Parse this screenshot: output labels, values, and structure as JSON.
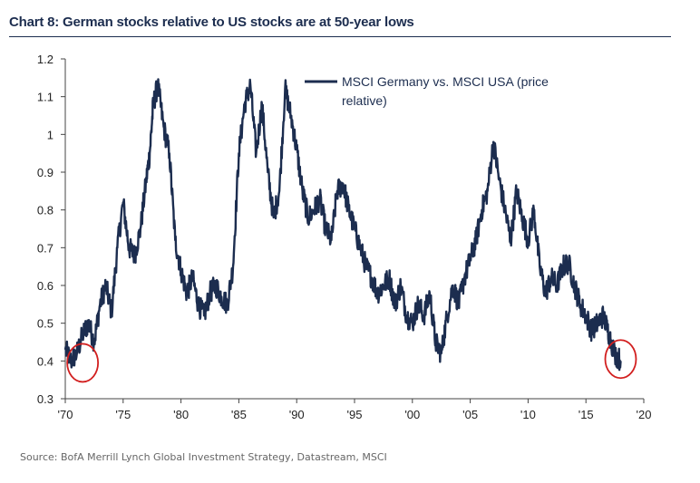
{
  "chart_data": {
    "type": "line",
    "title": "Chart 8: German stocks relative to US stocks are at 50-year lows",
    "xlabel": "",
    "ylabel": "",
    "xlim": [
      1970,
      2020
    ],
    "ylim": [
      0.3,
      1.2
    ],
    "x_ticks": [
      1970,
      1975,
      1980,
      1985,
      1990,
      1995,
      2000,
      2005,
      2010,
      2015,
      2020
    ],
    "x_tick_labels": [
      "'70",
      "'75",
      "'80",
      "'85",
      "'90",
      "'95",
      "'00",
      "'05",
      "'10",
      "'15",
      "'20"
    ],
    "y_ticks": [
      0.3,
      0.4,
      0.5,
      0.6,
      0.7,
      0.8,
      0.9,
      1.0,
      1.1,
      1.2
    ],
    "y_tick_labels": [
      "0.3",
      "0.4",
      "0.5",
      "0.6",
      "0.7",
      "0.8",
      "0.9",
      "1",
      "1.1",
      "1.2"
    ],
    "legend": {
      "label_line1": "MSCI Germany vs. MSCI USA (price",
      "label_line2": "relative)",
      "placement": "top-center"
    },
    "series": [
      {
        "name": "MSCI Germany vs. MSCI USA (price relative)",
        "color": "#1c2d4f",
        "x": [
          1970.0,
          1970.5,
          1971.0,
          1971.5,
          1972.0,
          1972.5,
          1973.0,
          1973.5,
          1974.0,
          1974.5,
          1975.0,
          1975.5,
          1976.0,
          1976.5,
          1977.0,
          1977.3,
          1977.6,
          1978.0,
          1978.5,
          1979.0,
          1979.5,
          1980.0,
          1980.5,
          1981.0,
          1981.5,
          1982.0,
          1982.5,
          1983.0,
          1983.5,
          1984.0,
          1984.5,
          1985.0,
          1985.5,
          1986.0,
          1986.5,
          1987.0,
          1987.5,
          1988.0,
          1988.5,
          1989.0,
          1989.5,
          1990.0,
          1990.5,
          1991.0,
          1991.5,
          1992.0,
          1992.5,
          1993.0,
          1993.5,
          1994.0,
          1994.5,
          1995.0,
          1995.5,
          1996.0,
          1996.5,
          1997.0,
          1997.5,
          1998.0,
          1998.5,
          1999.0,
          1999.5,
          2000.0,
          2000.5,
          2001.0,
          2001.5,
          2002.0,
          2002.5,
          2003.0,
          2003.5,
          2004.0,
          2004.5,
          2005.0,
          2005.5,
          2006.0,
          2006.5,
          2007.0,
          2007.5,
          2008.0,
          2008.5,
          2009.0,
          2009.5,
          2010.0,
          2010.5,
          2011.0,
          2011.5,
          2012.0,
          2012.5,
          2013.0,
          2013.5,
          2014.0,
          2014.5,
          2015.0,
          2015.5,
          2016.0,
          2016.5,
          2017.0,
          2017.5,
          2018.0
        ],
        "values": [
          0.43,
          0.4,
          0.42,
          0.47,
          0.5,
          0.45,
          0.55,
          0.6,
          0.53,
          0.7,
          0.82,
          0.7,
          0.68,
          0.75,
          0.88,
          0.95,
          1.08,
          1.13,
          1.02,
          0.95,
          0.72,
          0.64,
          0.58,
          0.62,
          0.55,
          0.52,
          0.58,
          0.6,
          0.57,
          0.55,
          0.65,
          0.95,
          1.08,
          1.13,
          0.95,
          1.08,
          0.9,
          0.78,
          0.85,
          1.12,
          1.05,
          0.96,
          0.85,
          0.78,
          0.8,
          0.83,
          0.75,
          0.72,
          0.85,
          0.87,
          0.8,
          0.75,
          0.7,
          0.65,
          0.62,
          0.58,
          0.6,
          0.62,
          0.55,
          0.6,
          0.52,
          0.5,
          0.55,
          0.52,
          0.58,
          0.45,
          0.42,
          0.52,
          0.6,
          0.55,
          0.62,
          0.67,
          0.72,
          0.8,
          0.85,
          0.98,
          0.88,
          0.8,
          0.72,
          0.85,
          0.78,
          0.72,
          0.8,
          0.65,
          0.58,
          0.62,
          0.6,
          0.65,
          0.66,
          0.6,
          0.55,
          0.52,
          0.48,
          0.5,
          0.52,
          0.47,
          0.42,
          0.4
        ]
      }
    ],
    "annotations": [
      {
        "type": "circle",
        "x": 1971.5,
        "y": 0.395,
        "color": "#d21f1f",
        "meaning": "starting low"
      },
      {
        "type": "circle",
        "x": 2018.0,
        "y": 0.405,
        "color": "#d21f1f",
        "meaning": "current low"
      }
    ]
  },
  "source_text": "Source:  BofA Merrill Lynch Global Investment Strategy, Datastream, MSCI"
}
